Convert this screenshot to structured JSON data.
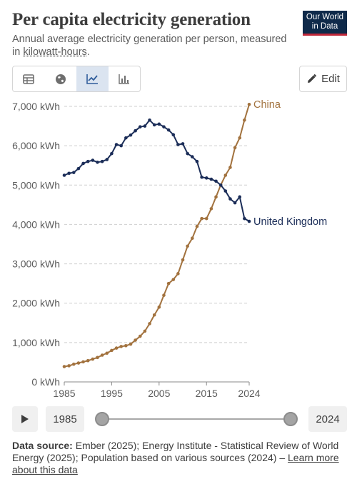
{
  "header": {
    "title": "Per capita electricity generation",
    "subtitle_pre": "Annual average electricity generation per person, measured in ",
    "subtitle_link": "kilowatt-hours",
    "subtitle_post": ".",
    "logo_line1": "Our World",
    "logo_line2": "in Data"
  },
  "toolbar": {
    "tabs": [
      "table-icon",
      "globe-icon",
      "line-chart-icon",
      "bar-chart-icon"
    ],
    "active_tab": "line-chart-icon",
    "edit_label": "Edit"
  },
  "colors": {
    "china": "#a2723e",
    "uk": "#1b2d58",
    "grid": "#cfcfcf",
    "text": "#5b5b5b"
  },
  "chart_data": {
    "type": "line",
    "x": [
      1985,
      1986,
      1987,
      1988,
      1989,
      1990,
      1991,
      1992,
      1993,
      1994,
      1995,
      1996,
      1997,
      1998,
      1999,
      2000,
      2001,
      2002,
      2003,
      2004,
      2005,
      2006,
      2007,
      2008,
      2009,
      2010,
      2011,
      2012,
      2013,
      2014,
      2015,
      2016,
      2017,
      2018,
      2019,
      2020,
      2021,
      2022,
      2023,
      2024
    ],
    "series": [
      {
        "name": "China",
        "values": [
          390,
          410,
          450,
          480,
          510,
          540,
          580,
          620,
          680,
          730,
          800,
          860,
          900,
          920,
          960,
          1060,
          1160,
          1290,
          1480,
          1700,
          1900,
          2200,
          2500,
          2600,
          2750,
          3100,
          3450,
          3650,
          3950,
          4150,
          4150,
          4400,
          4700,
          5000,
          5250,
          5450,
          5950,
          6200,
          6650,
          7050
        ]
      },
      {
        "name": "United Kingdom",
        "values": [
          5250,
          5300,
          5320,
          5420,
          5550,
          5600,
          5630,
          5580,
          5600,
          5650,
          5800,
          6030,
          6000,
          6200,
          6270,
          6380,
          6480,
          6500,
          6650,
          6530,
          6550,
          6480,
          6400,
          6280,
          6030,
          6050,
          5800,
          5720,
          5600,
          5200,
          5180,
          5150,
          5100,
          5000,
          4850,
          4650,
          4550,
          4700,
          4150,
          4080
        ]
      }
    ],
    "ylim": [
      0,
      7000
    ],
    "yticks": [
      "0 kWh",
      "1,000 kWh",
      "2,000 kWh",
      "3,000 kWh",
      "4,000 kWh",
      "5,000 kWh",
      "6,000 kWh",
      "7,000 kWh"
    ],
    "ytick_values": [
      0,
      1000,
      2000,
      3000,
      4000,
      5000,
      6000,
      7000
    ],
    "xticks": [
      1985,
      1995,
      2005,
      2015,
      2024
    ],
    "grid": true,
    "legend": "inline-labels-at-line-ends"
  },
  "timeline": {
    "start": "1985",
    "end": "2024"
  },
  "footer": {
    "source_label": "Data source:",
    "source_text": " Ember (2025); Energy Institute - Statistical Review of World Energy (2025); Population based on various sources (2024) – ",
    "learn_more": "Learn more about this data"
  }
}
